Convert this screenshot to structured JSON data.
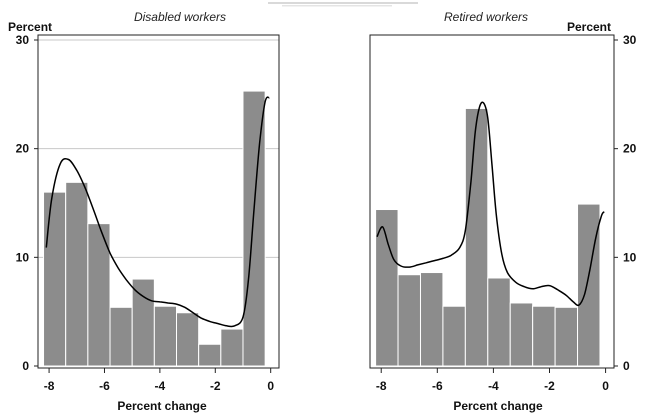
{
  "chart_data": [
    {
      "type": "bar",
      "title": "Disabled workers",
      "ylabel": "Percent",
      "xlabel": "Percent change",
      "xlim": [
        -8.4,
        0.3
      ],
      "ylim": [
        0,
        30
      ],
      "grid": true,
      "x_ticks": [
        "-8",
        "-6",
        "-4",
        "-2",
        "0"
      ],
      "y_ticks": [
        "0",
        "10",
        "20",
        "30"
      ],
      "y_axis_side": "left",
      "bar_color": "#8c8c8c",
      "bins": [
        {
          "x0": -8.2,
          "x1": -7.4,
          "value": 16.0
        },
        {
          "x0": -7.4,
          "x1": -6.6,
          "value": 16.9
        },
        {
          "x0": -6.6,
          "x1": -5.8,
          "value": 13.1
        },
        {
          "x0": -5.8,
          "x1": -5.0,
          "value": 5.4
        },
        {
          "x0": -5.0,
          "x1": -4.2,
          "value": 8.0
        },
        {
          "x0": -4.2,
          "x1": -3.4,
          "value": 5.5
        },
        {
          "x0": -3.4,
          "x1": -2.6,
          "value": 4.9
        },
        {
          "x0": -2.6,
          "x1": -1.8,
          "value": 2.0
        },
        {
          "x0": -1.8,
          "x1": -1.0,
          "value": 3.4
        },
        {
          "x0": -1.0,
          "x1": -0.2,
          "value": 25.3
        }
      ],
      "density_curve": [
        [
          -8.1,
          10.9
        ],
        [
          -7.9,
          15.5
        ],
        [
          -7.6,
          18.6
        ],
        [
          -7.3,
          19.0
        ],
        [
          -7.0,
          18.0
        ],
        [
          -6.7,
          16.4
        ],
        [
          -6.4,
          14.4
        ],
        [
          -6.1,
          12.3
        ],
        [
          -5.8,
          10.4
        ],
        [
          -5.5,
          9.0
        ],
        [
          -5.2,
          7.9
        ],
        [
          -4.9,
          7.0
        ],
        [
          -4.6,
          6.4
        ],
        [
          -4.3,
          6.0
        ],
        [
          -4.0,
          5.9
        ],
        [
          -3.7,
          5.8
        ],
        [
          -3.4,
          5.7
        ],
        [
          -3.1,
          5.4
        ],
        [
          -2.8,
          4.9
        ],
        [
          -2.5,
          4.4
        ],
        [
          -2.2,
          4.1
        ],
        [
          -1.9,
          3.9
        ],
        [
          -1.6,
          3.7
        ],
        [
          -1.3,
          3.7
        ],
        [
          -1.0,
          4.5
        ],
        [
          -0.8,
          8.0
        ],
        [
          -0.6,
          14.5
        ],
        [
          -0.4,
          20.5
        ],
        [
          -0.2,
          24.3
        ],
        [
          -0.05,
          24.7
        ]
      ]
    },
    {
      "type": "bar",
      "title": "Retired workers",
      "ylabel": "Percent",
      "xlabel": "Percent change",
      "xlim": [
        -8.4,
        0.3
      ],
      "ylim": [
        0,
        30
      ],
      "grid": false,
      "x_ticks": [
        "-8",
        "-6",
        "-4",
        "-2",
        "0"
      ],
      "y_ticks": [
        "0",
        "10",
        "20",
        "30"
      ],
      "y_axis_side": "right",
      "bar_color": "#8c8c8c",
      "bins": [
        {
          "x0": -8.2,
          "x1": -7.4,
          "value": 14.4
        },
        {
          "x0": -7.4,
          "x1": -6.6,
          "value": 8.4
        },
        {
          "x0": -6.6,
          "x1": -5.8,
          "value": 8.6
        },
        {
          "x0": -5.8,
          "x1": -5.0,
          "value": 5.5
        },
        {
          "x0": -5.0,
          "x1": -4.2,
          "value": 23.7
        },
        {
          "x0": -4.2,
          "x1": -3.4,
          "value": 8.1
        },
        {
          "x0": -3.4,
          "x1": -2.6,
          "value": 5.8
        },
        {
          "x0": -2.6,
          "x1": -1.8,
          "value": 5.5
        },
        {
          "x0": -1.8,
          "x1": -1.0,
          "value": 5.4
        },
        {
          "x0": -1.0,
          "x1": -0.2,
          "value": 14.9
        }
      ],
      "density_curve": [
        [
          -8.15,
          11.9
        ],
        [
          -7.95,
          12.8
        ],
        [
          -7.75,
          11.2
        ],
        [
          -7.55,
          9.8
        ],
        [
          -7.3,
          9.2
        ],
        [
          -7.0,
          9.1
        ],
        [
          -6.7,
          9.3
        ],
        [
          -6.4,
          9.5
        ],
        [
          -6.1,
          9.7
        ],
        [
          -5.8,
          9.9
        ],
        [
          -5.5,
          10.2
        ],
        [
          -5.2,
          10.9
        ],
        [
          -5.0,
          12.5
        ],
        [
          -4.8,
          17.0
        ],
        [
          -4.65,
          21.5
        ],
        [
          -4.5,
          23.8
        ],
        [
          -4.35,
          24.2
        ],
        [
          -4.2,
          22.8
        ],
        [
          -4.05,
          18.5
        ],
        [
          -3.9,
          14.0
        ],
        [
          -3.7,
          10.3
        ],
        [
          -3.5,
          8.6
        ],
        [
          -3.2,
          7.7
        ],
        [
          -2.9,
          7.3
        ],
        [
          -2.6,
          7.1
        ],
        [
          -2.3,
          7.3
        ],
        [
          -2.0,
          7.4
        ],
        [
          -1.7,
          7.0
        ],
        [
          -1.4,
          6.5
        ],
        [
          -1.15,
          5.9
        ],
        [
          -0.95,
          5.6
        ],
        [
          -0.75,
          6.6
        ],
        [
          -0.55,
          9.0
        ],
        [
          -0.35,
          11.8
        ],
        [
          -0.15,
          13.8
        ],
        [
          -0.05,
          14.2
        ]
      ]
    }
  ]
}
